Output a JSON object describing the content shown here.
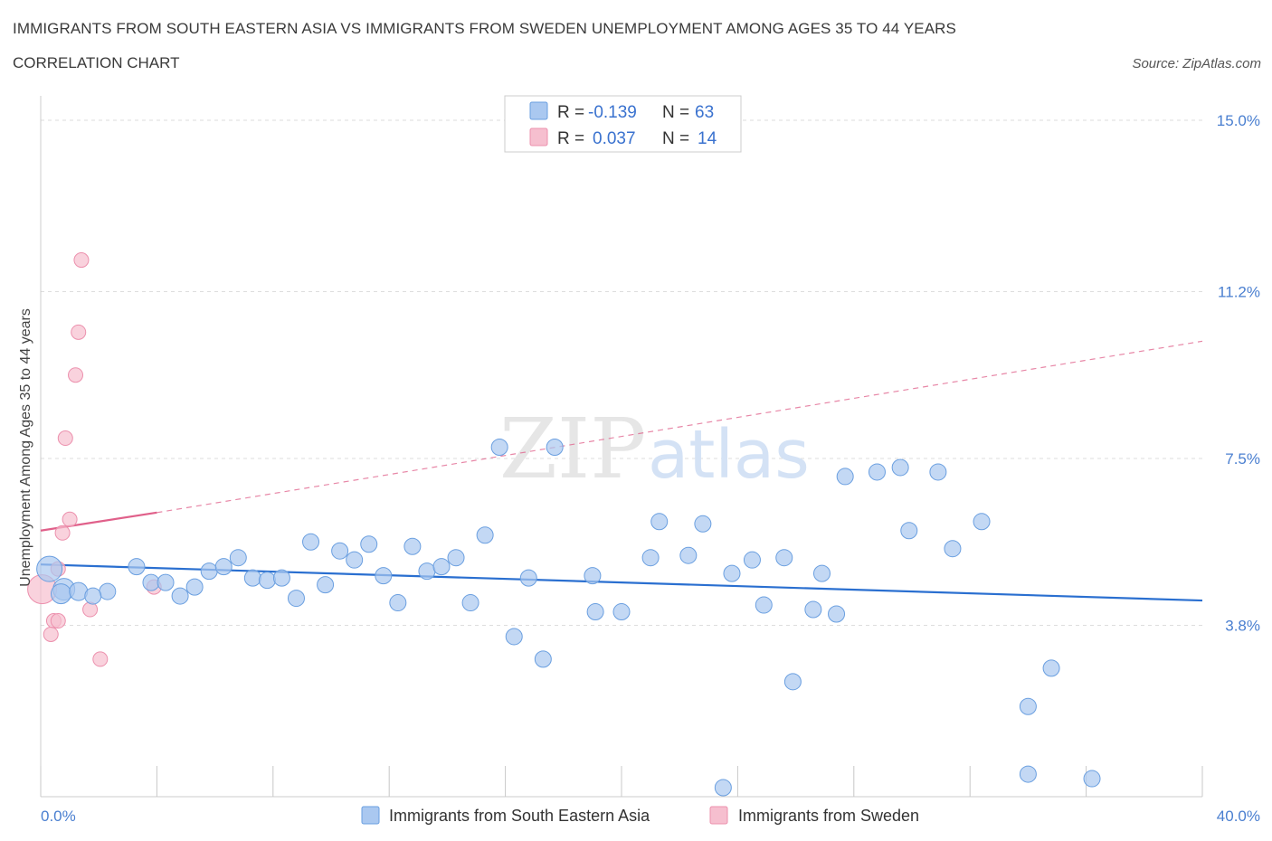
{
  "header": {
    "title": "IMMIGRANTS FROM SOUTH EASTERN ASIA VS IMMIGRANTS FROM SWEDEN UNEMPLOYMENT AMONG AGES 35 TO 44 YEARS",
    "subtitle": "CORRELATION CHART",
    "source": "Source: ZipAtlas.com"
  },
  "watermark": {
    "zip": "ZIP",
    "atlas": "atlas"
  },
  "legend": {
    "r_label": "R =",
    "n_label": "N =",
    "rows": [
      {
        "r": "-0.139",
        "n": "63"
      },
      {
        "r": "0.037",
        "n": "14"
      }
    ]
  },
  "colors": {
    "blue_fill": "#aac8f0",
    "blue_stroke": "#6a9fe0",
    "blue_line": "#2a6fd0",
    "pink_fill": "#f6bfcf",
    "pink_stroke": "#ec90ad",
    "pink_line": "#e0608a",
    "grid": "#dddddd",
    "axis_text": "#4a7fd0"
  },
  "chart_data": {
    "type": "scatter",
    "title": "IMMIGRANTS FROM SOUTH EASTERN ASIA VS IMMIGRANTS FROM SWEDEN UNEMPLOYMENT AMONG AGES 35 TO 44 YEARS",
    "subtitle": "CORRELATION CHART",
    "xlabel": "",
    "ylabel": "Unemployment Among Ages 35 to 44 years",
    "xlim": [
      0,
      40
    ],
    "ylim": [
      0,
      15.3
    ],
    "x_tick_labels": [
      "0.0%",
      "40.0%"
    ],
    "y_ticks": [
      3.8,
      7.5,
      11.2,
      15.0
    ],
    "y_tick_labels": [
      "3.8%",
      "7.5%",
      "11.2%",
      "15.0%"
    ],
    "grid": true,
    "legend_position": "top-center",
    "series": [
      {
        "name": "Immigrants from South Eastern Asia",
        "color": "#aac8f0",
        "R": -0.139,
        "N": 63,
        "trend": {
          "x": [
            0,
            40
          ],
          "y": [
            5.15,
            4.35
          ],
          "style": "solid"
        },
        "points": [
          [
            0.3,
            5.05,
            14
          ],
          [
            0.8,
            4.6,
            12
          ],
          [
            0.7,
            4.5,
            11
          ],
          [
            1.3,
            4.55,
            10
          ],
          [
            2.3,
            4.55,
            9
          ],
          [
            1.8,
            4.45,
            9
          ],
          [
            3.3,
            5.1,
            9
          ],
          [
            3.8,
            4.75,
            9
          ],
          [
            4.3,
            4.75,
            9
          ],
          [
            4.8,
            4.45,
            9
          ],
          [
            5.3,
            4.65,
            9
          ],
          [
            5.8,
            5.0,
            9
          ],
          [
            6.3,
            5.1,
            9
          ],
          [
            6.8,
            5.3,
            9
          ],
          [
            7.3,
            4.85,
            9
          ],
          [
            7.8,
            4.8,
            9
          ],
          [
            8.3,
            4.85,
            9
          ],
          [
            8.8,
            4.4,
            9
          ],
          [
            9.3,
            5.65,
            9
          ],
          [
            9.8,
            4.7,
            9
          ],
          [
            10.3,
            5.45,
            9
          ],
          [
            10.8,
            5.25,
            9
          ],
          [
            11.3,
            5.6,
            9
          ],
          [
            11.8,
            4.9,
            9
          ],
          [
            12.3,
            4.3,
            9
          ],
          [
            12.8,
            5.55,
            9
          ],
          [
            13.3,
            5.0,
            9
          ],
          [
            13.8,
            5.1,
            9
          ],
          [
            14.3,
            5.3,
            9
          ],
          [
            14.8,
            4.3,
            9
          ],
          [
            15.3,
            5.8,
            9
          ],
          [
            15.8,
            7.75,
            9
          ],
          [
            16.3,
            3.55,
            9
          ],
          [
            16.8,
            4.85,
            9
          ],
          [
            17.3,
            3.05,
            9
          ],
          [
            17.7,
            7.75,
            9
          ],
          [
            19.0,
            4.9,
            9
          ],
          [
            19.1,
            4.1,
            9
          ],
          [
            20.0,
            4.1,
            9
          ],
          [
            21.0,
            5.3,
            9
          ],
          [
            21.3,
            6.1,
            9
          ],
          [
            22.3,
            5.35,
            9
          ],
          [
            22.8,
            6.05,
            9
          ],
          [
            23.5,
            0.2,
            9
          ],
          [
            23.8,
            4.95,
            9
          ],
          [
            24.5,
            5.25,
            9
          ],
          [
            24.9,
            4.25,
            9
          ],
          [
            25.6,
            5.3,
            9
          ],
          [
            25.9,
            2.55,
            9
          ],
          [
            26.6,
            4.15,
            9
          ],
          [
            26.9,
            4.95,
            9
          ],
          [
            27.4,
            4.05,
            9
          ],
          [
            27.7,
            7.1,
            9
          ],
          [
            28.8,
            7.2,
            9
          ],
          [
            29.6,
            7.3,
            9
          ],
          [
            29.9,
            5.9,
            9
          ],
          [
            30.9,
            7.2,
            9
          ],
          [
            31.4,
            5.5,
            9
          ],
          [
            32.4,
            6.1,
            9
          ],
          [
            34.0,
            2.0,
            9
          ],
          [
            34.0,
            0.5,
            9
          ],
          [
            34.8,
            2.85,
            9
          ],
          [
            36.2,
            0.4,
            9
          ]
        ]
      },
      {
        "name": "Immigrants from Sweden",
        "color": "#f6bfcf",
        "R": 0.037,
        "N": 14,
        "trend_solid": {
          "x": [
            0,
            4
          ],
          "y": [
            5.9,
            6.3
          ]
        },
        "trend_dashed": {
          "x": [
            4,
            40
          ],
          "y": [
            6.3,
            10.1
          ]
        },
        "points": [
          [
            0.05,
            4.6,
            16
          ],
          [
            1.4,
            11.9,
            8
          ],
          [
            1.3,
            10.3,
            8
          ],
          [
            1.2,
            9.35,
            8
          ],
          [
            0.85,
            7.95,
            8
          ],
          [
            1.0,
            6.15,
            8
          ],
          [
            0.75,
            5.85,
            8
          ],
          [
            0.6,
            5.05,
            8
          ],
          [
            0.45,
            3.9,
            8
          ],
          [
            0.6,
            3.9,
            8
          ],
          [
            0.35,
            3.6,
            8
          ],
          [
            1.7,
            4.15,
            8
          ],
          [
            2.05,
            3.05,
            8
          ],
          [
            3.9,
            4.65,
            8
          ]
        ]
      }
    ]
  }
}
